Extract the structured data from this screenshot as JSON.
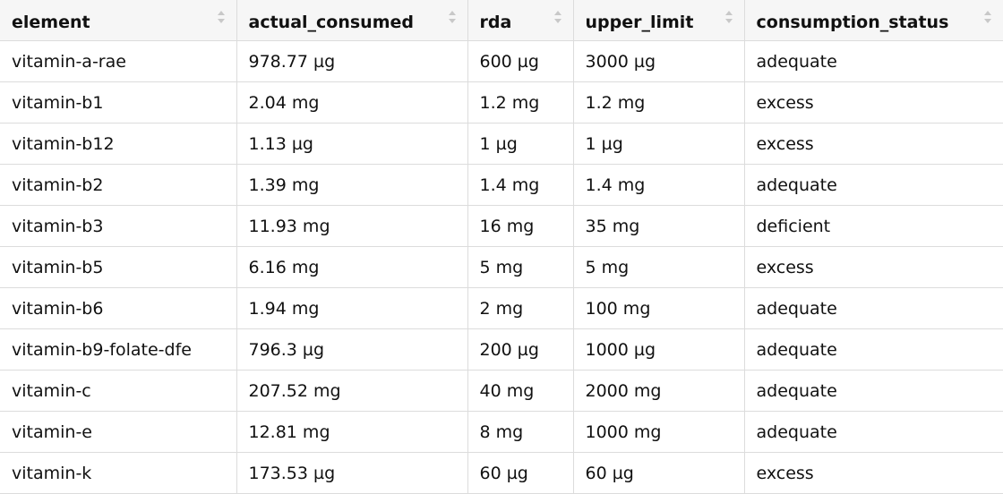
{
  "table": {
    "columns": [
      "element",
      "actual_consumed",
      "rda",
      "upper_limit",
      "consumption_status"
    ],
    "rows": [
      [
        "vitamin-a-rae",
        "978.77 µg",
        "600 µg",
        "3000 µg",
        "adequate"
      ],
      [
        "vitamin-b1",
        "2.04 mg",
        "1.2 mg",
        "1.2 mg",
        "excess"
      ],
      [
        "vitamin-b12",
        "1.13 µg",
        "1 µg",
        "1 µg",
        "excess"
      ],
      [
        "vitamin-b2",
        "1.39 mg",
        "1.4 mg",
        "1.4 mg",
        "adequate"
      ],
      [
        "vitamin-b3",
        "11.93 mg",
        "16 mg",
        "35 mg",
        "deficient"
      ],
      [
        "vitamin-b5",
        "6.16 mg",
        "5 mg",
        "5 mg",
        "excess"
      ],
      [
        "vitamin-b6",
        "1.94 mg",
        "2 mg",
        "100 mg",
        "adequate"
      ],
      [
        "vitamin-b9-folate-dfe",
        "796.3 µg",
        "200 µg",
        "1000 µg",
        "adequate"
      ],
      [
        "vitamin-c",
        "207.52 mg",
        "40 mg",
        "2000 mg",
        "adequate"
      ],
      [
        "vitamin-e",
        "12.81 mg",
        "8 mg",
        "1000 mg",
        "adequate"
      ],
      [
        "vitamin-k",
        "173.53 µg",
        "60 µg",
        "60 µg",
        "excess"
      ]
    ]
  }
}
